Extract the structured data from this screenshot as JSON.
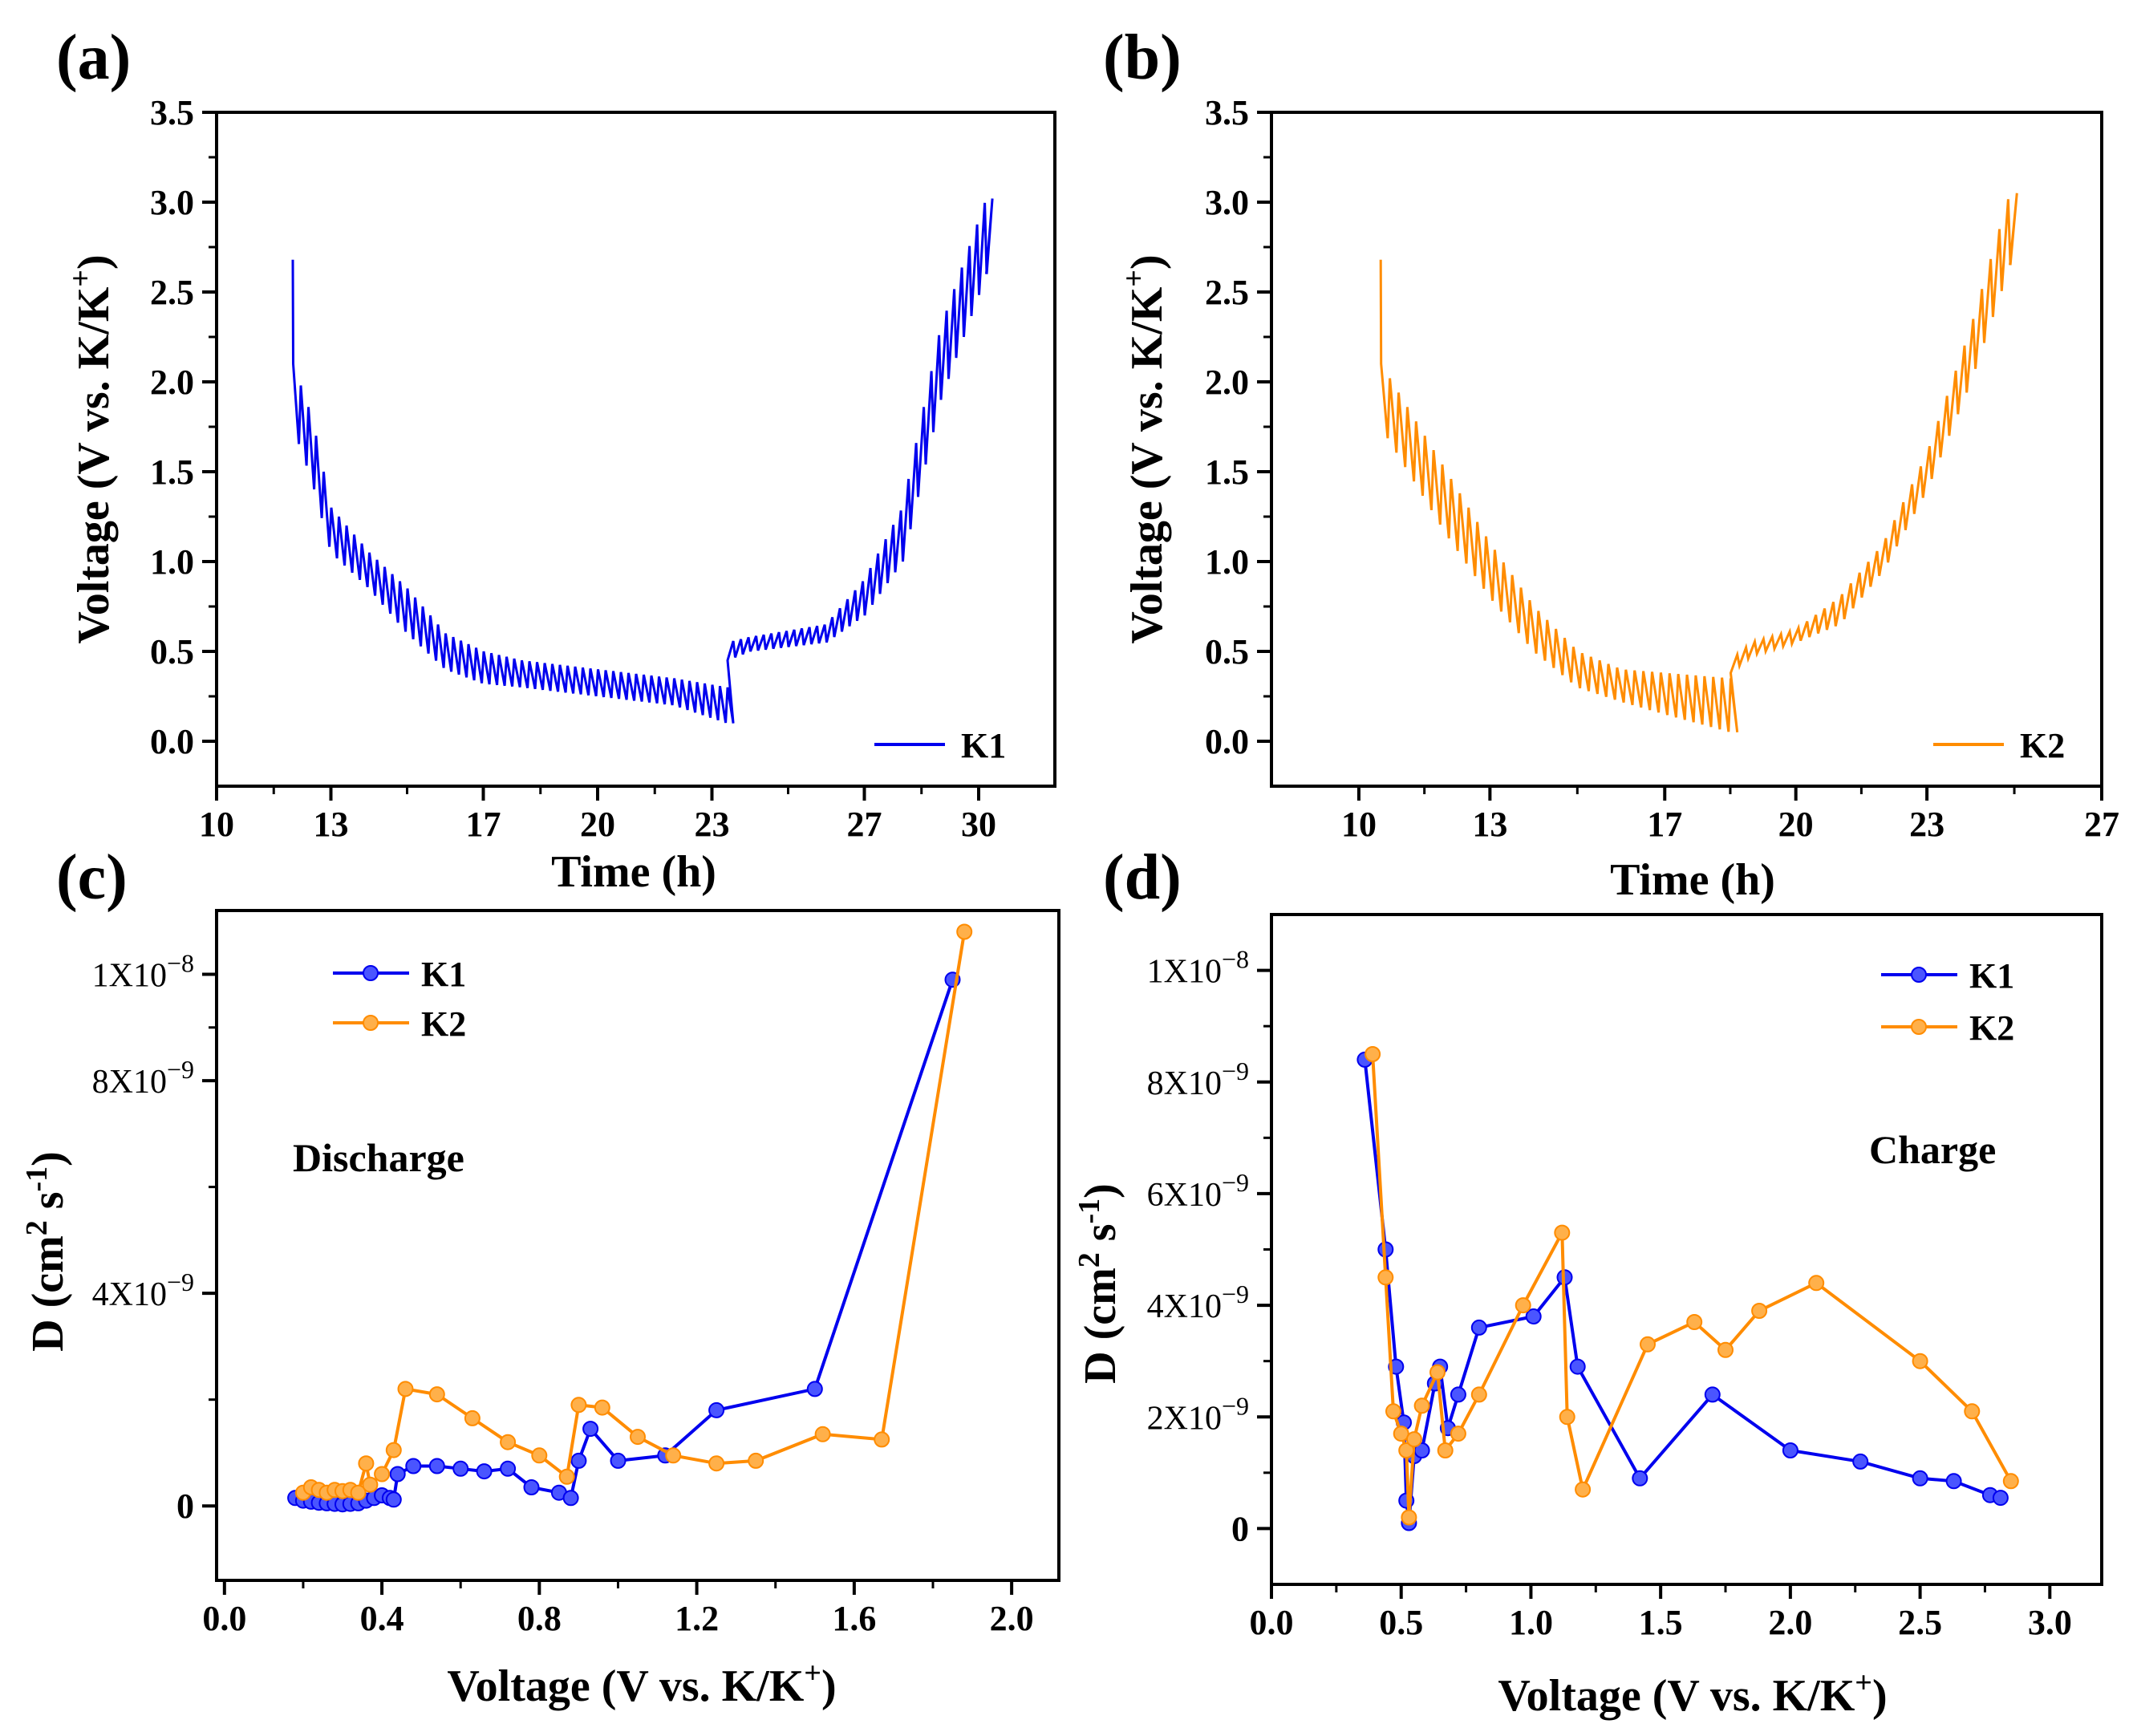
{
  "chart_data": [
    {
      "id": "a",
      "panel_label": "(a)",
      "type": "line",
      "xlabel": "Time (h)",
      "ylabel": "Voltage (V vs. K/K+)",
      "ylabel_parts": {
        "main": "Voltage (V vs. K/K",
        "sup": "+",
        "end": ")"
      },
      "xlim": [
        10,
        32
      ],
      "ylim": [
        -0.25,
        3.5
      ],
      "xticks": [
        10,
        13,
        17,
        20,
        23,
        27,
        30
      ],
      "xtick_labels": [
        "10",
        "13",
        "17",
        "20",
        "23",
        "27",
        "30"
      ],
      "yticks": [
        0.0,
        0.5,
        1.0,
        1.5,
        2.0,
        2.5,
        3.0,
        3.5
      ],
      "ytick_labels": [
        "0.0",
        "0.5",
        "1.0",
        "1.5",
        "2.0",
        "2.5",
        "3.0",
        "3.5"
      ],
      "legend": "bottom-right",
      "series": [
        {
          "name": "K1",
          "color": "#0000ee",
          "style": "gitt",
          "start_time": 12.0,
          "start_voltage": 2.68,
          "discharge_end": 23.4,
          "charge_end": 30.2,
          "final_voltage": 2.6,
          "discharge_envelope": {
            "x": [
              12.0,
              12.5,
              13.0,
              14.0,
              15.0,
              16.0,
              17.0,
              18.0,
              20.0,
              22.0,
              23.4
            ],
            "y": [
              2.1,
              1.8,
              1.3,
              1.05,
              0.85,
              0.6,
              0.5,
              0.45,
              0.4,
              0.35,
              0.3
            ]
          },
          "discharge_relax": {
            "x": [
              12.0,
              12.5,
              13.0,
              14.0,
              15.0,
              16.0,
              17.0,
              18.0,
              20.0,
              22.0,
              23.4
            ],
            "y": [
              1.75,
              1.45,
              1.05,
              0.85,
              0.6,
              0.4,
              0.32,
              0.3,
              0.25,
              0.2,
              0.1
            ]
          },
          "charge_envelope": {
            "x": [
              23.4,
              24.0,
              26.0,
              27.0,
              28.0,
              29.0,
              30.2
            ],
            "y": [
              0.55,
              0.58,
              0.65,
              0.9,
              1.3,
              2.3,
              3.02
            ]
          },
          "charge_relax": {
            "x": [
              23.4,
              24.0,
              26.0,
              27.0,
              28.0,
              29.0,
              30.2
            ],
            "y": [
              0.45,
              0.5,
              0.55,
              0.7,
              1.0,
              1.9,
              2.6
            ]
          }
        }
      ]
    },
    {
      "id": "b",
      "panel_label": "(b)",
      "type": "line",
      "xlabel": "Time (h)",
      "ylabel": "Voltage (V vs. K/K+)",
      "ylabel_parts": {
        "main": "Voltage (V vs. K/K",
        "sup": "+",
        "end": ")"
      },
      "xlim": [
        8,
        27
      ],
      "ylim": [
        -0.25,
        3.5
      ],
      "xticks": [
        10,
        13,
        17,
        20,
        23,
        27
      ],
      "xtick_labels": [
        "10",
        "13",
        "17",
        "20",
        "23",
        "27"
      ],
      "yticks": [
        0.0,
        0.5,
        1.0,
        1.5,
        2.0,
        2.5,
        3.0,
        3.5
      ],
      "ytick_labels": [
        "0.0",
        "0.5",
        "1.0",
        "1.5",
        "2.0",
        "2.5",
        "3.0",
        "3.5"
      ],
      "legend": "bottom-right",
      "series": [
        {
          "name": "K2",
          "color": "#ff8c00",
          "style": "gitt",
          "start_time": 10.5,
          "start_voltage": 2.68,
          "discharge_end": 18.5,
          "charge_end": 24.9,
          "final_voltage": 2.65,
          "discharge_envelope": {
            "x": [
              10.5,
              11.0,
              12.0,
              13.0,
              14.0,
              15.0,
              16.0,
              17.0,
              18.5
            ],
            "y": [
              2.1,
              1.9,
              1.5,
              1.1,
              0.75,
              0.5,
              0.4,
              0.38,
              0.35
            ]
          },
          "discharge_relax": {
            "x": [
              10.5,
              11.0,
              12.0,
              13.0,
              14.0,
              15.0,
              16.0,
              17.0,
              18.5
            ],
            "y": [
              1.75,
              1.55,
              1.15,
              0.8,
              0.5,
              0.3,
              0.22,
              0.15,
              0.05
            ]
          },
          "charge_envelope": {
            "x": [
              18.5,
              19.0,
              20.0,
              21.0,
              22.0,
              23.0,
              24.0,
              24.9
            ],
            "y": [
              0.45,
              0.55,
              0.62,
              0.8,
              1.1,
              1.6,
              2.3,
              3.05
            ]
          },
          "charge_relax": {
            "x": [
              18.5,
              19.0,
              20.0,
              21.0,
              22.0,
              23.0,
              24.0,
              24.9
            ],
            "y": [
              0.38,
              0.48,
              0.55,
              0.65,
              0.95,
              1.4,
              2.0,
              2.65
            ]
          }
        }
      ]
    },
    {
      "id": "c",
      "panel_label": "(c)",
      "type": "line",
      "xlabel": "Voltage (V vs. K/K+)",
      "xlabel_parts": {
        "main": "Voltage (V vs. K/K",
        "sup": "+",
        "end": ")"
      },
      "ylabel": "D (cm2 s-1)",
      "xlim": [
        -0.02,
        2.12
      ],
      "ylim": [
        -1.4e-09,
        1.12e-08
      ],
      "xticks": [
        0.0,
        0.4,
        0.8,
        1.2,
        1.6,
        2.0
      ],
      "xtick_labels": [
        "0.0",
        "0.4",
        "0.8",
        "1.2",
        "1.6",
        "2.0"
      ],
      "yticks": [
        0,
        4e-09,
        8e-09,
        1e-08
      ],
      "ytick_labels": [
        "0",
        "4X10",
        "8X10",
        "1X10"
      ],
      "ytick_exps": [
        "",
        "−9",
        "−9",
        "−8"
      ],
      "annotation": "Discharge",
      "legend": "top-left",
      "series": [
        {
          "name": "K1",
          "color": "#0000ee",
          "x": [
            0.18,
            0.2,
            0.22,
            0.24,
            0.26,
            0.28,
            0.3,
            0.32,
            0.34,
            0.36,
            0.38,
            0.4,
            0.42,
            0.43,
            0.44,
            0.48,
            0.54,
            0.6,
            0.66,
            0.72,
            0.78,
            0.85,
            0.88,
            0.9,
            0.93,
            1.0,
            1.12,
            1.25,
            1.5,
            1.85
          ],
          "y": [
            1.5e-10,
            1e-10,
            8e-11,
            6e-11,
            5e-11,
            4e-11,
            3e-11,
            4e-11,
            5e-11,
            1e-10,
            1.5e-10,
            2e-10,
            1.5e-10,
            1.2e-10,
            6e-10,
            7.5e-10,
            7.5e-10,
            7e-10,
            6.5e-10,
            7e-10,
            3.5e-10,
            2.5e-10,
            1.5e-10,
            8.5e-10,
            1.45e-09,
            8.5e-10,
            9.5e-10,
            1.8e-09,
            2.2e-09,
            9.9e-09
          ]
        },
        {
          "name": "K2",
          "color": "#ff8c00",
          "x": [
            0.2,
            0.22,
            0.24,
            0.26,
            0.28,
            0.3,
            0.32,
            0.34,
            0.36,
            0.37,
            0.4,
            0.43,
            0.46,
            0.54,
            0.63,
            0.72,
            0.8,
            0.87,
            0.9,
            0.96,
            1.05,
            1.14,
            1.25,
            1.35,
            1.52,
            1.67,
            1.88
          ],
          "y": [
            2.5e-10,
            3.5e-10,
            3e-10,
            2.5e-10,
            3e-10,
            2.8e-10,
            3e-10,
            2.5e-10,
            8e-10,
            4e-10,
            6e-10,
            1.05e-09,
            2.2e-09,
            2.1e-09,
            1.65e-09,
            1.2e-09,
            9.5e-10,
            5.5e-10,
            1.9e-09,
            1.85e-09,
            1.3e-09,
            9.5e-10,
            8e-10,
            8.5e-10,
            1.35e-09,
            1.25e-09,
            1.08e-08
          ]
        }
      ]
    },
    {
      "id": "d",
      "panel_label": "(d)",
      "type": "line",
      "xlabel": "Voltage (V vs. K/K+)",
      "xlabel_parts": {
        "main": "Voltage (V vs. K/K",
        "sup": "+",
        "end": ")"
      },
      "ylabel": "D (cm2 s-1)",
      "xlim": [
        0.0,
        3.2
      ],
      "ylim": [
        -1e-09,
        1.1e-08
      ],
      "xticks": [
        0.0,
        0.5,
        1.0,
        1.5,
        2.0,
        2.5,
        3.0
      ],
      "xtick_labels": [
        "0.0",
        "0.5",
        "1.0",
        "1.5",
        "2.0",
        "2.5",
        "3.0"
      ],
      "yticks": [
        0,
        2e-09,
        4e-09,
        6e-09,
        8e-09,
        1e-08
      ],
      "ytick_labels": [
        "0",
        "2X10",
        "4X10",
        "6X10",
        "8X10",
        "1X10"
      ],
      "ytick_exps": [
        "",
        "−9",
        "−9",
        "−9",
        "−9",
        "−8"
      ],
      "annotation": "Charge",
      "legend": "top-right",
      "series": [
        {
          "name": "K1",
          "color": "#0000ee",
          "x": [
            0.36,
            0.44,
            0.48,
            0.51,
            0.52,
            0.53,
            0.55,
            0.58,
            0.63,
            0.65,
            0.68,
            0.72,
            0.8,
            1.01,
            1.13,
            1.18,
            1.42,
            1.7,
            2.0,
            2.27,
            2.5,
            2.63,
            2.77,
            2.81
          ],
          "y": [
            8.4e-09,
            5e-09,
            2.9e-09,
            1.9e-09,
            5e-10,
            1e-10,
            1.3e-09,
            1.4e-09,
            2.6e-09,
            2.9e-09,
            1.8e-09,
            2.4e-09,
            3.6e-09,
            3.8e-09,
            4.5e-09,
            2.9e-09,
            9e-10,
            2.4e-09,
            1.4e-09,
            1.2e-09,
            9e-10,
            8.5e-10,
            6e-10,
            5.5e-10
          ]
        },
        {
          "name": "K2",
          "color": "#ff8c00",
          "x": [
            0.39,
            0.44,
            0.47,
            0.5,
            0.52,
            0.53,
            0.55,
            0.58,
            0.64,
            0.67,
            0.72,
            0.8,
            0.97,
            1.12,
            1.14,
            1.2,
            1.45,
            1.63,
            1.75,
            1.88,
            2.1,
            2.5,
            2.7,
            2.85
          ],
          "y": [
            8.5e-09,
            4.5e-09,
            2.1e-09,
            1.7e-09,
            1.4e-09,
            2e-10,
            1.6e-09,
            2.2e-09,
            2.8e-09,
            1.4e-09,
            1.7e-09,
            2.4e-09,
            4e-09,
            5.3e-09,
            2e-09,
            7e-10,
            3.3e-09,
            3.7e-09,
            3.2e-09,
            3.9e-09,
            4.4e-09,
            3e-09,
            2.1e-09,
            8.5e-10
          ]
        }
      ]
    }
  ]
}
